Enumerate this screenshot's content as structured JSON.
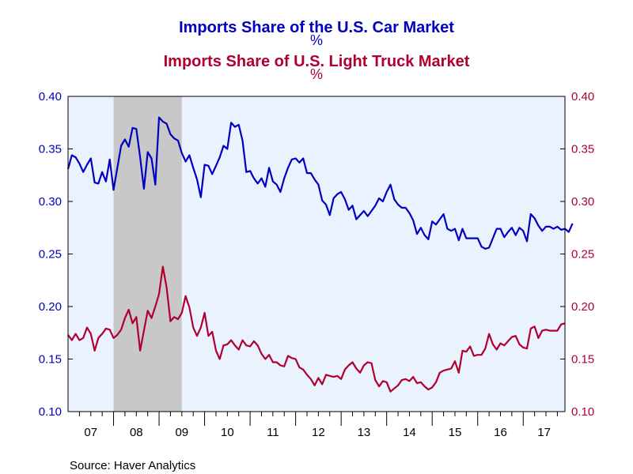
{
  "chart_data": {
    "type": "line",
    "title": "Imports Share of the U.S. Car Market",
    "title_unit": "%",
    "subtitle": "Imports Share of U.S. Light Truck Market",
    "subtitle_unit": "%",
    "source": "Source:  Haver Analytics",
    "x_tick_labels": [
      "07",
      "08",
      "09",
      "10",
      "11",
      "12",
      "13",
      "14",
      "15",
      "16",
      "17"
    ],
    "y_ticks": [
      0.1,
      0.15,
      0.2,
      0.25,
      0.3,
      0.35,
      0.4
    ],
    "y_tick_labels": [
      "0.10",
      "0.15",
      "0.20",
      "0.25",
      "0.30",
      "0.35",
      "0.40"
    ],
    "ylim": [
      0.1,
      0.4
    ],
    "xlim": [
      2007.0,
      2017.917
    ],
    "recession_band": [
      2008.0,
      2009.5
    ],
    "colors": {
      "car": "#0000c0",
      "truck": "#b00030",
      "plot_bg": "#eaf2fd",
      "recession": "#c8c8c8",
      "title": "#0000c0",
      "subtitle": "#b00030"
    },
    "series": [
      {
        "key": "car",
        "start": 2007.0,
        "step": 0.0833333,
        "values": [
          0.331,
          0.344,
          0.342,
          0.336,
          0.328,
          0.335,
          0.341,
          0.318,
          0.317,
          0.328,
          0.319,
          0.34,
          0.311,
          0.332,
          0.353,
          0.359,
          0.352,
          0.37,
          0.369,
          0.342,
          0.312,
          0.347,
          0.341,
          0.316,
          0.38,
          0.376,
          0.374,
          0.364,
          0.36,
          0.358,
          0.346,
          0.338,
          0.344,
          0.332,
          0.321,
          0.304,
          0.335,
          0.334,
          0.326,
          0.334,
          0.342,
          0.353,
          0.35,
          0.375,
          0.371,
          0.373,
          0.358,
          0.328,
          0.329,
          0.322,
          0.317,
          0.322,
          0.314,
          0.332,
          0.319,
          0.316,
          0.309,
          0.322,
          0.332,
          0.34,
          0.341,
          0.337,
          0.341,
          0.327,
          0.327,
          0.321,
          0.316,
          0.301,
          0.297,
          0.287,
          0.303,
          0.307,
          0.309,
          0.302,
          0.292,
          0.296,
          0.283,
          0.287,
          0.291,
          0.286,
          0.291,
          0.296,
          0.303,
          0.3,
          0.309,
          0.316,
          0.302,
          0.297,
          0.294,
          0.294,
          0.289,
          0.282,
          0.269,
          0.275,
          0.268,
          0.264,
          0.281,
          0.278,
          0.283,
          0.288,
          0.274,
          0.272,
          0.274,
          0.263,
          0.274,
          0.265,
          0.265,
          0.265,
          0.265,
          0.257,
          0.255,
          0.256,
          0.265,
          0.274,
          0.274,
          0.266,
          0.271,
          0.275,
          0.268,
          0.275,
          0.272,
          0.262,
          0.288,
          0.284,
          0.277,
          0.272,
          0.276,
          0.276,
          0.274,
          0.276,
          0.273,
          0.274,
          0.271,
          0.279
        ]
      },
      {
        "key": "truck",
        "start": 2007.0,
        "step": 0.0833333,
        "values": [
          0.173,
          0.168,
          0.174,
          0.168,
          0.17,
          0.18,
          0.174,
          0.158,
          0.17,
          0.174,
          0.179,
          0.178,
          0.17,
          0.173,
          0.178,
          0.189,
          0.197,
          0.184,
          0.19,
          0.158,
          0.177,
          0.196,
          0.189,
          0.2,
          0.212,
          0.238,
          0.218,
          0.186,
          0.19,
          0.188,
          0.194,
          0.21,
          0.199,
          0.18,
          0.172,
          0.18,
          0.194,
          0.172,
          0.176,
          0.158,
          0.15,
          0.163,
          0.164,
          0.168,
          0.163,
          0.159,
          0.168,
          0.163,
          0.162,
          0.167,
          0.163,
          0.155,
          0.15,
          0.154,
          0.147,
          0.147,
          0.144,
          0.143,
          0.153,
          0.151,
          0.15,
          0.142,
          0.14,
          0.135,
          0.131,
          0.125,
          0.132,
          0.126,
          0.135,
          0.134,
          0.133,
          0.134,
          0.131,
          0.14,
          0.144,
          0.147,
          0.141,
          0.137,
          0.144,
          0.147,
          0.146,
          0.13,
          0.124,
          0.129,
          0.128,
          0.119,
          0.122,
          0.125,
          0.13,
          0.131,
          0.129,
          0.133,
          0.127,
          0.128,
          0.124,
          0.121,
          0.123,
          0.128,
          0.137,
          0.139,
          0.14,
          0.141,
          0.148,
          0.137,
          0.158,
          0.157,
          0.162,
          0.153,
          0.154,
          0.154,
          0.16,
          0.174,
          0.164,
          0.159,
          0.165,
          0.163,
          0.167,
          0.171,
          0.172,
          0.164,
          0.161,
          0.16,
          0.179,
          0.181,
          0.17,
          0.177,
          0.178,
          0.177,
          0.177,
          0.177,
          0.183,
          0.184
        ]
      }
    ]
  }
}
